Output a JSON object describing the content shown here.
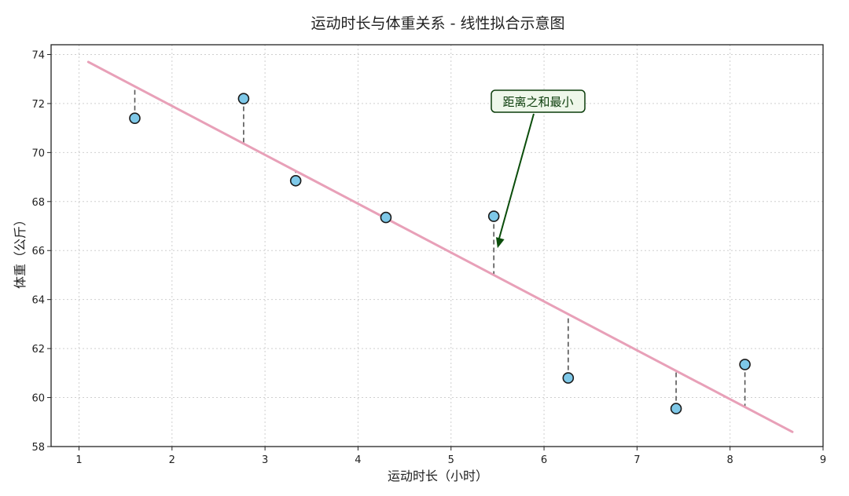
{
  "chart_data": {
    "type": "scatter",
    "title": "运动时长与体重关系 - 线性拟合示意图",
    "xlabel": "运动时长（小时）",
    "ylabel": "体重（公斤）",
    "xlim": [
      0.7,
      9.0
    ],
    "ylim": [
      58,
      74.4
    ],
    "xticks": [
      1,
      2,
      3,
      4,
      5,
      6,
      7,
      8,
      9
    ],
    "yticks": [
      58,
      60,
      62,
      64,
      66,
      68,
      70,
      72,
      74
    ],
    "grid": true,
    "points": [
      {
        "x": 1.6,
        "y": 71.4
      },
      {
        "x": 2.77,
        "y": 72.2
      },
      {
        "x": 3.33,
        "y": 68.85
      },
      {
        "x": 4.3,
        "y": 67.35
      },
      {
        "x": 5.46,
        "y": 67.4
      },
      {
        "x": 6.26,
        "y": 60.8
      },
      {
        "x": 7.42,
        "y": 59.55
      },
      {
        "x": 8.16,
        "y": 61.35
      }
    ],
    "fit_line": {
      "slope": -1.9945,
      "intercept": 75.89,
      "x_start": 1.1,
      "x_end": 8.67
    },
    "annotation": {
      "text": "距离之和最小",
      "target": {
        "x": 5.5,
        "y": 66.1
      }
    },
    "colors": {
      "point_fill": "#7ec8e8",
      "point_edge": "#1a1a1a",
      "fit_line": "#e8a0b8",
      "residual": "#555555",
      "annotation_text": "#0b3d0b",
      "annotation_box": "#eef7ea",
      "annotation_arrow": "#0b4d0b",
      "grid": "#cfcfcf"
    }
  }
}
